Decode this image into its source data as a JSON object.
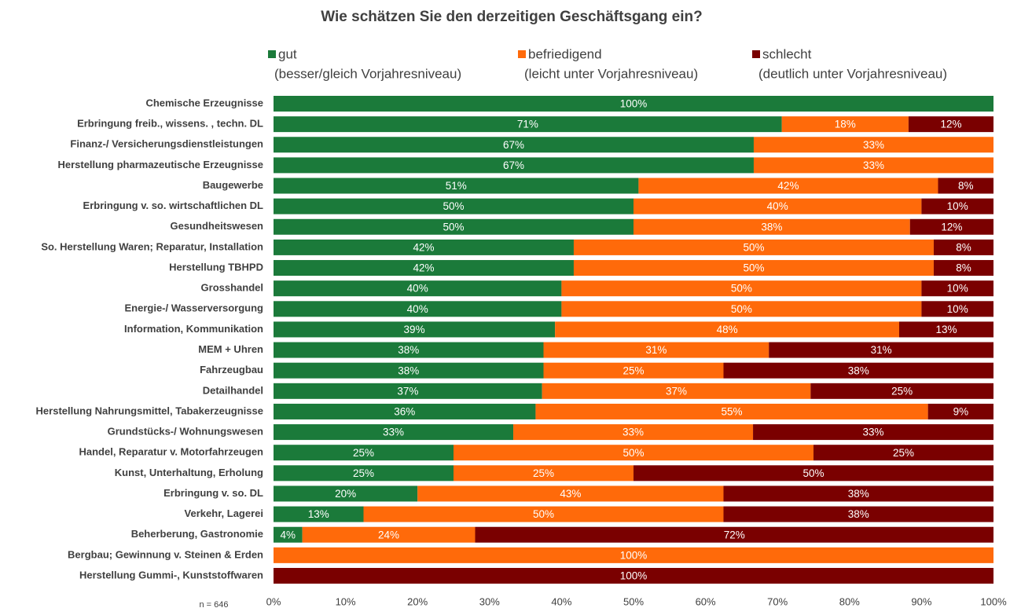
{
  "chart_data": {
    "type": "stacked_barh",
    "title": "Wie schätzen Sie den derzeitigen Geschäftsgang ein?",
    "annotation": "n = 646",
    "categories": [
      "Chemische Erzeugnisse",
      "Erbringung freib., wissens. , techn. DL",
      "Finanz-/ Versicherungsdienstleistungen",
      "Herstellung pharmazeutische Erzeugnisse",
      "Baugewerbe",
      "Erbringung  v. so. wirtschaftlichen DL",
      "Gesundheitswesen",
      "So. Herstellung Waren; Reparatur, Installation",
      "Herstellung TBHPD",
      "Grosshandel",
      "Energie-/ Wasserversorgung",
      "Information, Kommunikation",
      "MEM + Uhren",
      "Fahrzeugbau",
      "Detailhandel",
      "Herstellung Nahrungsmittel, Tabakerzeugnisse",
      "Grundstücks-/ Wohnungswesen",
      "Handel, Reparatur v. Motorfahrzeugen",
      "Kunst, Unterhaltung, Erholung",
      "Erbringung v. so. DL",
      "Verkehr, Lagerei",
      "Beherberung, Gastronomie",
      "Bergbau; Gewinnung v. Steinen & Erden",
      "Herstellung Gummi-, Kunststoffwaren"
    ],
    "series": [
      {
        "name": "gut",
        "description": "(besser/gleich Vorjahresniveau)",
        "color": "#1b7a3a",
        "values": [
          100,
          70.6,
          66.7,
          66.7,
          50.7,
          50,
          50,
          41.7,
          41.7,
          40,
          40,
          39.1,
          37.5,
          37.5,
          37.3,
          36.4,
          33.3,
          25,
          25,
          20,
          12.5,
          4,
          null,
          null
        ],
        "value_labels": [
          "100%",
          "71%",
          "67%",
          "67%",
          "51%",
          "50%",
          "50%",
          "42%",
          "42%",
          "40%",
          "40%",
          "39%",
          "38%",
          "38%",
          "37%",
          "36%",
          "33%",
          "25%",
          "25%",
          "20%",
          "13%",
          "4%",
          null,
          null
        ]
      },
      {
        "name": "befriedigend",
        "description": "(leicht unter Vorjahresniveau)",
        "color": "#ff6a0a",
        "values": [
          null,
          17.6,
          33.3,
          33.3,
          41.6,
          40,
          38.4,
          50,
          50,
          50,
          50,
          47.8,
          31.3,
          25,
          37.3,
          54.5,
          33.3,
          50,
          25,
          42.5,
          50,
          24,
          100,
          null
        ],
        "value_labels": [
          null,
          "18%",
          "33%",
          "33%",
          "42%",
          "40%",
          "38%",
          "50%",
          "50%",
          "50%",
          "50%",
          "48%",
          "31%",
          "25%",
          "37%",
          "55%",
          "33%",
          "50%",
          "25%",
          "43%",
          "50%",
          "24%",
          "100%",
          null
        ]
      },
      {
        "name": "schlecht",
        "description": "(deutlich unter Vorjahresniveau)",
        "color": "#7a0000",
        "values": [
          null,
          11.8,
          null,
          null,
          7.7,
          10,
          11.6,
          8.3,
          8.3,
          10,
          10,
          13.1,
          31.2,
          37.5,
          25.4,
          9.1,
          33.4,
          25,
          50,
          37.5,
          37.5,
          72,
          null,
          100
        ],
        "value_labels": [
          null,
          "12%",
          null,
          null,
          "8%",
          "10%",
          "12%",
          "8%",
          "8%",
          "10%",
          "10%",
          "13%",
          "31%",
          "38%",
          "25%",
          "9%",
          "33%",
          "25%",
          "50%",
          "38%",
          "38%",
          "72%",
          null,
          "100%"
        ]
      }
    ],
    "xlim": [
      0,
      100
    ],
    "xticks": [
      {
        "value": 0,
        "label": "0%"
      },
      {
        "value": 10,
        "label": "10%"
      },
      {
        "value": 20,
        "label": "20%"
      },
      {
        "value": 30,
        "label": "30%"
      },
      {
        "value": 40,
        "label": "40%"
      },
      {
        "value": 50,
        "label": "50%"
      },
      {
        "value": 60,
        "label": "60%"
      },
      {
        "value": 70,
        "label": "70%"
      },
      {
        "value": 80,
        "label": "80%"
      },
      {
        "value": 90,
        "label": "90%"
      },
      {
        "value": 100,
        "label": "100%"
      }
    ],
    "grid": false
  }
}
